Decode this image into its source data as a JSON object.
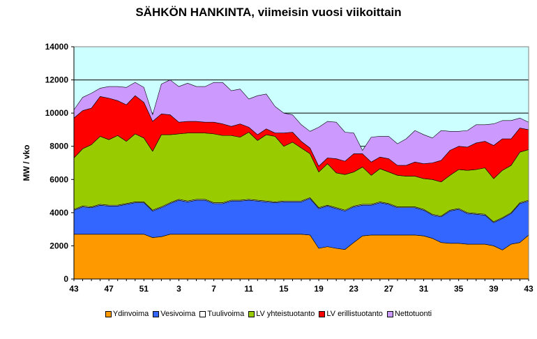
{
  "chart_data": {
    "type": "area",
    "stacked": true,
    "title": "SÄHKÖN HANKINTA, viimeisin vuosi viikoittain",
    "ylabel": "MW / vko",
    "xlabel": "",
    "ylim": [
      0,
      14000
    ],
    "yticks": [
      0,
      2000,
      4000,
      6000,
      8000,
      10000,
      12000,
      14000
    ],
    "ytick_labels": [
      "0",
      "2000",
      "4000",
      "6000",
      "8000",
      "10000",
      "12000",
      "14000"
    ],
    "x": [
      43,
      44,
      45,
      46,
      47,
      48,
      49,
      50,
      51,
      52,
      1,
      2,
      3,
      4,
      5,
      6,
      7,
      8,
      9,
      10,
      11,
      12,
      13,
      14,
      15,
      16,
      17,
      18,
      19,
      20,
      21,
      22,
      23,
      24,
      25,
      26,
      27,
      28,
      29,
      30,
      31,
      32,
      33,
      34,
      35,
      36,
      37,
      38,
      39,
      40,
      41,
      42,
      43
    ],
    "xtick_labels": [
      "43",
      "47",
      "51",
      "3",
      "7",
      "11",
      "15",
      "19",
      "23",
      "27",
      "31",
      "35",
      "39",
      "43"
    ],
    "xtick_index": [
      0,
      4,
      8,
      12,
      16,
      20,
      24,
      28,
      32,
      36,
      40,
      44,
      48,
      52
    ],
    "plot_background": "#ccffff",
    "gridlines": true,
    "legend_position": "bottom",
    "series": [
      {
        "name": "Ydinvoima",
        "color": "#ff9900",
        "values": [
          2700,
          2700,
          2700,
          2700,
          2700,
          2700,
          2700,
          2700,
          2700,
          2500,
          2550,
          2700,
          2700,
          2700,
          2700,
          2700,
          2700,
          2700,
          2700,
          2700,
          2700,
          2700,
          2700,
          2700,
          2700,
          2700,
          2700,
          2650,
          1850,
          1950,
          1850,
          1780,
          2200,
          2600,
          2650,
          2650,
          2650,
          2650,
          2650,
          2650,
          2600,
          2450,
          2200,
          2150,
          2150,
          2100,
          2100,
          2100,
          2000,
          1750,
          2100,
          2200,
          2650
        ]
      },
      {
        "name": "Vesivoima",
        "color": "#3366ff",
        "values": [
          1450,
          1650,
          1600,
          1750,
          1700,
          1700,
          1800,
          1900,
          1900,
          1600,
          1750,
          1850,
          2050,
          1950,
          2050,
          2050,
          1850,
          1850,
          2000,
          2000,
          2050,
          2000,
          1950,
          1900,
          1950,
          1950,
          1950,
          2200,
          2400,
          2450,
          2400,
          2320,
          2150,
          1850,
          1800,
          1950,
          1850,
          1650,
          1650,
          1650,
          1550,
          1400,
          1550,
          1950,
          2050,
          1850,
          1800,
          1750,
          1400,
          1900,
          1850,
          2350,
          2050
        ]
      },
      {
        "name": "Tuulivoima",
        "color": "#ffffff",
        "values": [
          50,
          50,
          50,
          50,
          50,
          50,
          50,
          50,
          50,
          50,
          50,
          50,
          50,
          50,
          50,
          50,
          50,
          50,
          50,
          50,
          50,
          50,
          50,
          50,
          50,
          50,
          50,
          50,
          50,
          50,
          50,
          50,
          50,
          50,
          50,
          50,
          50,
          50,
          50,
          50,
          50,
          50,
          50,
          50,
          50,
          50,
          50,
          50,
          50,
          50,
          50,
          50,
          50
        ]
      },
      {
        "name": "LV yhteistuotanto",
        "color": "#99cc00",
        "values": [
          3100,
          3450,
          3750,
          4100,
          3950,
          4200,
          3750,
          4100,
          3850,
          3550,
          4350,
          4100,
          3950,
          4100,
          4000,
          4000,
          4150,
          4050,
          3900,
          3800,
          4050,
          3600,
          4000,
          3950,
          3300,
          3550,
          3200,
          2650,
          2150,
          2500,
          2100,
          2150,
          2050,
          2250,
          1750,
          2000,
          1900,
          1900,
          1850,
          1850,
          1850,
          2100,
          2050,
          2100,
          2350,
          2550,
          2650,
          2800,
          2600,
          2850,
          2850,
          3050,
          3050
        ]
      },
      {
        "name": "LV erillistuotanto",
        "color": "#ff0000",
        "values": [
          2400,
          2300,
          2200,
          2400,
          2500,
          2100,
          2200,
          2300,
          2150,
          1800,
          1250,
          1200,
          700,
          700,
          700,
          650,
          700,
          700,
          550,
          800,
          300,
          350,
          350,
          200,
          800,
          600,
          400,
          350,
          350,
          350,
          850,
          800,
          1100,
          800,
          800,
          700,
          800,
          600,
          650,
          850,
          900,
          1000,
          1300,
          1500,
          1400,
          1400,
          1600,
          1600,
          2000,
          1900,
          1600,
          1450,
          1200
        ]
      },
      {
        "name": "Nettotuonti",
        "color": "#cc99ff",
        "values": [
          500,
          800,
          900,
          500,
          700,
          850,
          1050,
          800,
          900,
          400,
          1800,
          2100,
          2150,
          2300,
          2100,
          2150,
          2400,
          2500,
          2150,
          2100,
          1700,
          2350,
          2100,
          1600,
          1200,
          1050,
          1000,
          1000,
          2350,
          2200,
          2200,
          1750,
          1250,
          200,
          1500,
          1250,
          1350,
          1300,
          1600,
          1900,
          1750,
          1500,
          1800,
          1150,
          900,
          1000,
          1100,
          1000,
          1300,
          1100,
          1100,
          600,
          450
        ]
      }
    ]
  }
}
